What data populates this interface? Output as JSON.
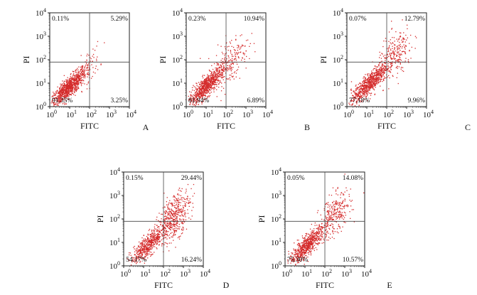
{
  "chart_data": [
    {
      "type": "scatter",
      "panel_label": "A",
      "xlabel": "FITC",
      "ylabel": "PI",
      "xlim": [
        "10^0",
        "10^4"
      ],
      "ylim": [
        "10^0",
        "10^4"
      ],
      "tick_base": "10",
      "tick_exponents": [
        "0",
        "1",
        "2",
        "3",
        "4"
      ],
      "quadrant_gates": {
        "x": "10^2",
        "y": "10^1.9"
      },
      "quadrants": {
        "top_left": "0.11%",
        "top_right": "5.29%",
        "bottom_left": "91.35%",
        "bottom_right": "3.25%"
      }
    },
    {
      "type": "scatter",
      "panel_label": "B",
      "xlabel": "FITC",
      "ylabel": "PI",
      "xlim": [
        "10^0",
        "10^4"
      ],
      "ylim": [
        "10^0",
        "10^4"
      ],
      "tick_base": "10",
      "tick_exponents": [
        "0",
        "1",
        "2",
        "3",
        "4"
      ],
      "quadrant_gates": {
        "x": "10^2",
        "y": "10^1.9"
      },
      "quadrants": {
        "top_left": "0.23%",
        "top_right": "10.94%",
        "bottom_left": "81.94%",
        "bottom_right": "6.89%"
      }
    },
    {
      "type": "scatter",
      "panel_label": "C",
      "xlabel": "FITC",
      "ylabel": "PI",
      "xlim": [
        "10^0",
        "10^4"
      ],
      "ylim": [
        "10^0",
        "10^4"
      ],
      "tick_base": "10",
      "tick_exponents": [
        "0",
        "1",
        "2",
        "3",
        "4"
      ],
      "quadrant_gates": {
        "x": "10^2",
        "y": "10^1.9"
      },
      "quadrants": {
        "top_left": "0.07%",
        "top_right": "12.79%",
        "bottom_left": "77.18%",
        "bottom_right": "9.96%"
      }
    },
    {
      "type": "scatter",
      "panel_label": "D",
      "xlabel": "FITC",
      "ylabel": "PI",
      "xlim": [
        "10^0",
        "10^4"
      ],
      "ylim": [
        "10^0",
        "10^4"
      ],
      "tick_base": "10",
      "tick_exponents": [
        "0",
        "1",
        "2",
        "3",
        "4"
      ],
      "quadrant_gates": {
        "x": "10^2",
        "y": "10^1.9"
      },
      "quadrants": {
        "top_left": "0.15%",
        "top_right": "29.44%",
        "bottom_left": "54.17%",
        "bottom_right": "16.24%"
      }
    },
    {
      "type": "scatter",
      "panel_label": "E",
      "xlabel": "FITC",
      "ylabel": "PI",
      "xlim": [
        "10^0",
        "10^4"
      ],
      "ylim": [
        "10^0",
        "10^4"
      ],
      "tick_base": "10",
      "tick_exponents": [
        "0",
        "1",
        "2",
        "3",
        "4"
      ],
      "quadrant_gates": {
        "x": "10^2",
        "y": "10^1.9"
      },
      "quadrants": {
        "top_left": "0.05%",
        "top_right": "14.08%",
        "bottom_left": "75.30%",
        "bottom_right": "10.57%"
      }
    }
  ],
  "colors": {
    "dots": "#d42a2a",
    "axis": "#222222",
    "gate": "#444444"
  }
}
